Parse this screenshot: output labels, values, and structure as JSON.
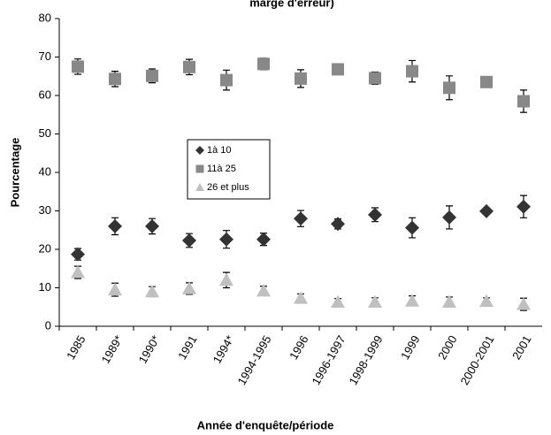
{
  "chart_data": {
    "type": "scatter",
    "title": "marge d'erreur)",
    "x_label": "Année d'enquête/période",
    "y_label": "Pourcentage",
    "categories": [
      "1985",
      "1989*",
      "1990*",
      "1991",
      "1994*",
      "1994-1995",
      "1996",
      "1996-1997",
      "1998-1999",
      "1999",
      "2000",
      "2000-2001",
      "2001"
    ],
    "ylim": [
      0,
      80
    ],
    "yticks": [
      0,
      10,
      20,
      30,
      40,
      50,
      60,
      70,
      80
    ],
    "series": [
      {
        "name": "1à 10",
        "color": "#333333",
        "marker": "diamond",
        "values": [
          18.7,
          26,
          26,
          22.3,
          22.6,
          22.6,
          28,
          26.6,
          29,
          25.6,
          28.3,
          29.9,
          31.1
        ],
        "errors": [
          1.5,
          2.2,
          2,
          1.8,
          2.3,
          1.6,
          2.1,
          1.3,
          1.8,
          2.6,
          3,
          0.8,
          2.9
        ]
      },
      {
        "name": "11à 25",
        "color": "#888888",
        "marker": "square",
        "values": [
          67.5,
          64.3,
          65.1,
          67.4,
          64,
          68.2,
          64.4,
          66.8,
          64.5,
          66.3,
          62,
          63.5,
          58.5
        ],
        "errors": [
          2,
          2,
          1.8,
          2,
          2.6,
          1.5,
          2.3,
          0.9,
          1.6,
          2.8,
          3.1,
          0.5,
          2.9
        ]
      },
      {
        "name": "26 et plus",
        "color": "#c0c0c0",
        "marker": "triangle",
        "values": [
          14,
          9.5,
          9,
          9.8,
          12,
          9.2,
          7.3,
          6.3,
          6.3,
          6.6,
          6.3,
          6.5,
          5.7
        ],
        "errors": [
          1.6,
          1.7,
          1.3,
          1.5,
          2,
          1.2,
          1.1,
          0.9,
          1.1,
          1.3,
          1.3,
          0.9,
          1.6
        ]
      }
    ]
  }
}
